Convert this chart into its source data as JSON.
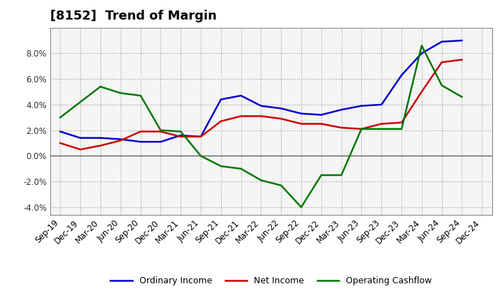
{
  "title": "[8152]  Trend of Margin",
  "x_labels": [
    "Sep-19",
    "Dec-19",
    "Mar-20",
    "Jun-20",
    "Sep-20",
    "Dec-20",
    "Mar-21",
    "Jun-21",
    "Sep-21",
    "Dec-21",
    "Mar-22",
    "Jun-22",
    "Sep-22",
    "Dec-22",
    "Mar-23",
    "Jun-23",
    "Sep-23",
    "Dec-23",
    "Mar-24",
    "Jun-24",
    "Sep-24",
    "Dec-24"
  ],
  "ordinary_income": [
    1.9,
    1.4,
    1.4,
    1.3,
    1.1,
    1.1,
    1.6,
    1.5,
    4.4,
    4.7,
    3.9,
    3.7,
    3.3,
    3.2,
    3.6,
    3.9,
    4.0,
    6.3,
    8.0,
    8.9,
    9.0,
    null
  ],
  "net_income": [
    1.0,
    0.5,
    0.8,
    1.2,
    1.9,
    1.9,
    1.5,
    1.5,
    2.7,
    3.1,
    3.1,
    2.9,
    2.5,
    2.5,
    2.2,
    2.1,
    2.5,
    2.6,
    5.0,
    7.3,
    7.5,
    null
  ],
  "opcf_indices": [
    0,
    2,
    3,
    4,
    5,
    6,
    7,
    8,
    9,
    10,
    11,
    12,
    13,
    14,
    15,
    16,
    17,
    18,
    19,
    20
  ],
  "opcf_values": [
    3.0,
    5.4,
    4.9,
    4.7,
    2.0,
    1.9,
    0.0,
    -0.8,
    -1.0,
    -1.9,
    -2.3,
    -4.0,
    -1.5,
    -1.5,
    2.1,
    2.1,
    2.1,
    8.6,
    5.5,
    4.6
  ],
  "ylim": [
    -4.6,
    10.0
  ],
  "yticks": [
    -4.0,
    -2.0,
    0.0,
    2.0,
    4.0,
    6.0,
    8.0
  ],
  "colors": {
    "ordinary_income": "#0000CC",
    "net_income": "#CC0000",
    "operating_cashflow": "#007700"
  },
  "background_color": "#FFFFFF",
  "plot_bg_color": "#F5F5F5",
  "grid_color": "#999999",
  "linewidth": 1.8,
  "title_fontsize": 13,
  "tick_fontsize": 8.5,
  "legend_fontsize": 9
}
